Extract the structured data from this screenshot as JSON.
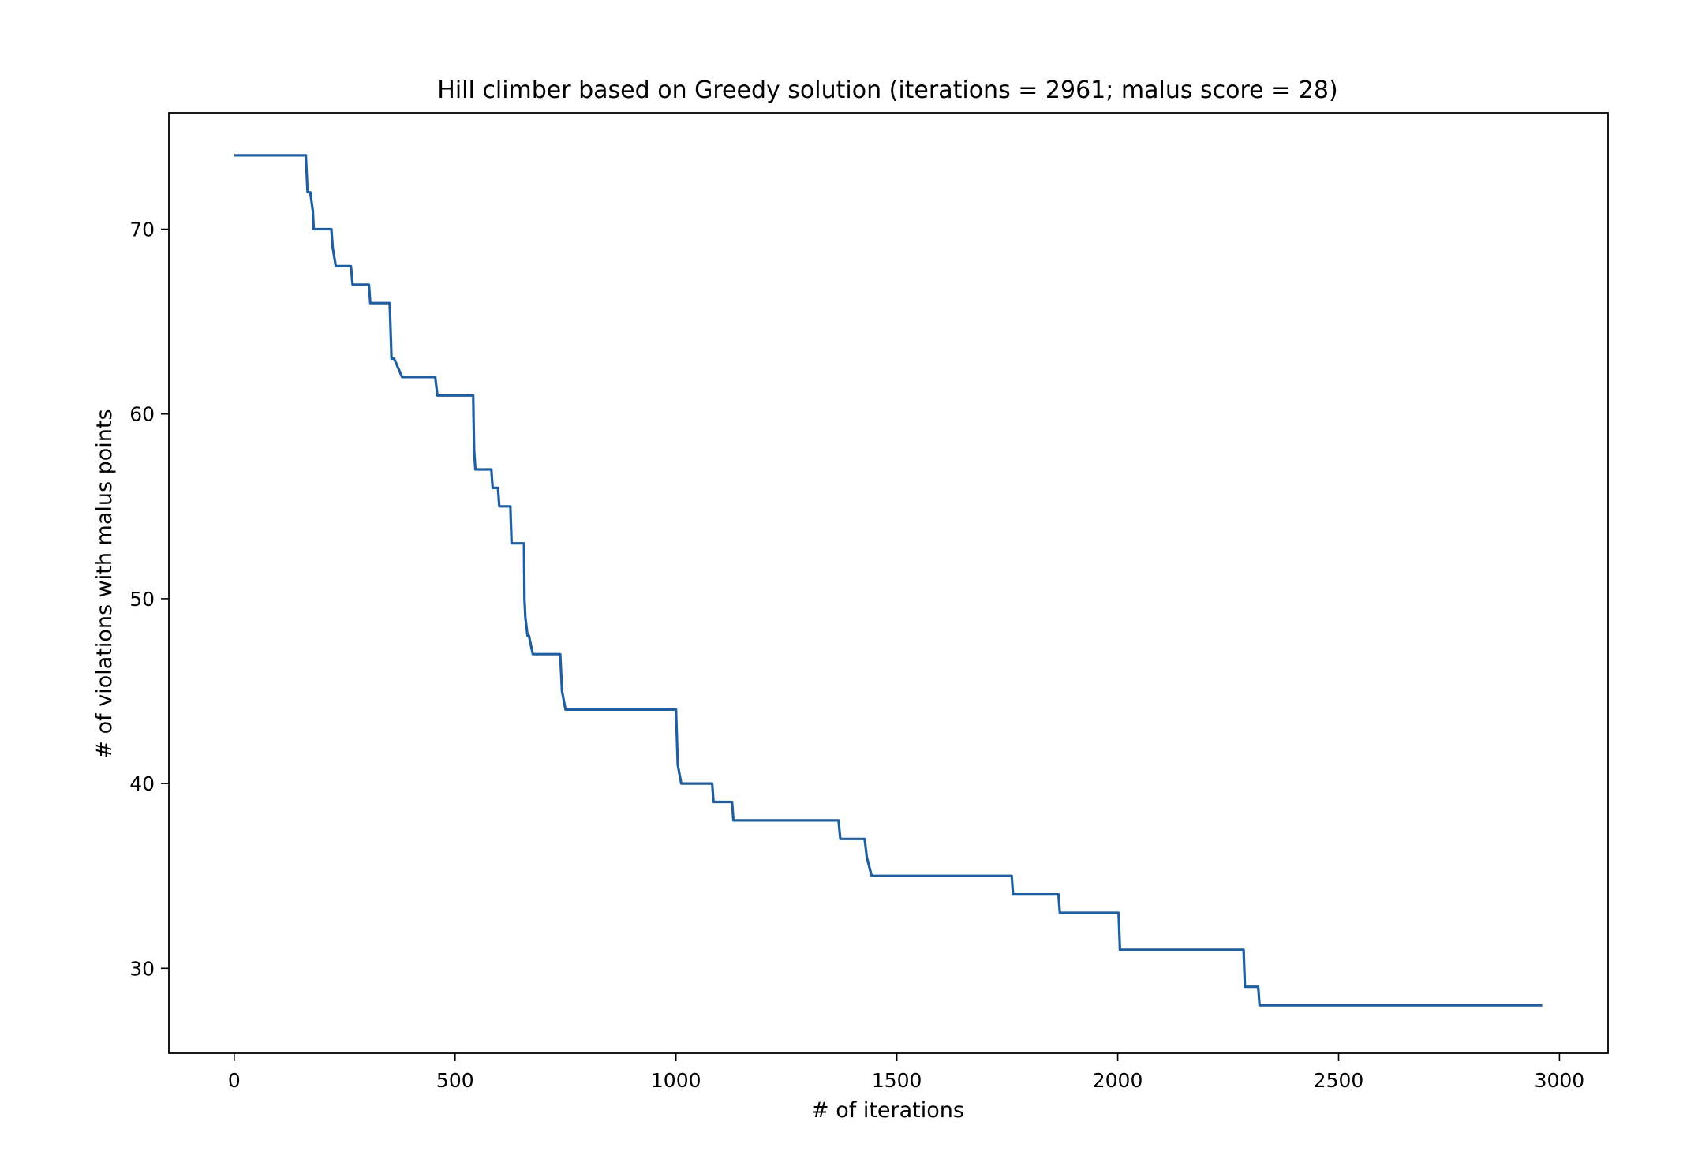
{
  "chart_data": {
    "type": "line",
    "title": "Hill climber based on Greedy solution (iterations = 2961; malus score = 28)",
    "xlabel": "# of iterations",
    "ylabel": "# of violations with malus points",
    "xlim": [
      -148,
      3110
    ],
    "ylim": [
      25.4,
      76.3
    ],
    "x_ticks": [
      0,
      500,
      1000,
      1500,
      2000,
      2500,
      3000
    ],
    "y_ticks": [
      30,
      40,
      50,
      60,
      70
    ],
    "grid": false,
    "legend": "none",
    "line_color": "#1f5fa0",
    "series": [
      {
        "x": [
          0,
          162,
          166,
          172,
          178,
          180,
          183,
          220,
          223,
          230,
          264,
          268,
          305,
          308,
          352,
          356,
          362,
          380,
          385,
          455,
          460,
          541,
          543,
          546,
          582,
          585,
          597,
          600,
          625,
          628,
          634,
          656,
          657,
          659,
          664,
          667,
          676,
          679,
          738,
          742,
          750,
          756,
          1000,
          1004,
          1012,
          1082,
          1085,
          1127,
          1130,
          1368,
          1372,
          1427,
          1432,
          1443,
          1447,
          1760,
          1763,
          1866,
          1869,
          2002,
          2005,
          2285,
          2288,
          2318,
          2321,
          2961
        ],
        "y": [
          74,
          74,
          72,
          72,
          71,
          70,
          70,
          70,
          69,
          68,
          68,
          67,
          67,
          66,
          66,
          63,
          63,
          62,
          62,
          62,
          61,
          61,
          58,
          57,
          57,
          56,
          56,
          55,
          55,
          53,
          53,
          53,
          50,
          49,
          48,
          48,
          47,
          47,
          47,
          45,
          44,
          44,
          44,
          41,
          40,
          40,
          39,
          39,
          38,
          38,
          37,
          37,
          36,
          35,
          35,
          35,
          34,
          34,
          33,
          33,
          31,
          31,
          29,
          29,
          28,
          28
        ]
      }
    ]
  }
}
